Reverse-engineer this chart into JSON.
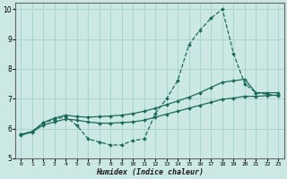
{
  "xlabel": "Humidex (Indice chaleur)",
  "bg_color": "#cce8e4",
  "grid_color": "#aad4ce",
  "line_color": "#1a6b5a",
  "xlim": [
    -0.5,
    23.5
  ],
  "ylim": [
    5,
    10.2
  ],
  "yticks": [
    5,
    6,
    7,
    8,
    9,
    10
  ],
  "xticks": [
    0,
    1,
    2,
    3,
    4,
    5,
    6,
    7,
    8,
    9,
    10,
    11,
    12,
    13,
    14,
    15,
    16,
    17,
    18,
    19,
    20,
    21,
    22,
    23
  ],
  "series": [
    {
      "x": [
        0,
        1,
        2,
        3,
        4,
        5,
        6,
        7,
        8,
        9,
        10,
        11,
        12,
        13,
        14,
        15,
        16,
        17,
        18,
        19,
        20,
        21,
        22,
        23
      ],
      "y": [
        5.8,
        5.9,
        6.2,
        6.3,
        6.4,
        6.1,
        5.65,
        5.55,
        5.45,
        5.45,
        5.6,
        5.65,
        6.5,
        7.0,
        7.6,
        8.8,
        9.3,
        9.7,
        10.0,
        8.5,
        7.5,
        7.2,
        7.15,
        7.1
      ],
      "linestyle": "--",
      "linewidth": 0.9,
      "marker": "D",
      "markersize": 2.0
    },
    {
      "x": [
        0,
        1,
        2,
        3,
        4,
        5,
        6,
        7,
        8,
        9,
        10,
        11,
        12,
        13,
        14,
        15,
        16,
        17,
        18,
        19,
        20,
        21,
        22,
        23
      ],
      "y": [
        5.8,
        5.9,
        6.2,
        6.35,
        6.45,
        6.4,
        6.38,
        6.4,
        6.42,
        6.45,
        6.5,
        6.58,
        6.68,
        6.8,
        6.92,
        7.05,
        7.2,
        7.38,
        7.55,
        7.6,
        7.65,
        7.2,
        7.2,
        7.2
      ],
      "linestyle": "-",
      "linewidth": 0.9,
      "marker": "D",
      "markersize": 2.0
    },
    {
      "x": [
        0,
        1,
        2,
        3,
        4,
        5,
        6,
        7,
        8,
        9,
        10,
        11,
        12,
        13,
        14,
        15,
        16,
        17,
        18,
        19,
        20,
        21,
        22,
        23
      ],
      "y": [
        5.78,
        5.88,
        6.12,
        6.22,
        6.32,
        6.28,
        6.22,
        6.18,
        6.18,
        6.2,
        6.22,
        6.28,
        6.38,
        6.48,
        6.58,
        6.68,
        6.78,
        6.88,
        6.98,
        7.02,
        7.08,
        7.08,
        7.1,
        7.12
      ],
      "linestyle": "-",
      "linewidth": 0.9,
      "marker": "D",
      "markersize": 2.0
    }
  ]
}
